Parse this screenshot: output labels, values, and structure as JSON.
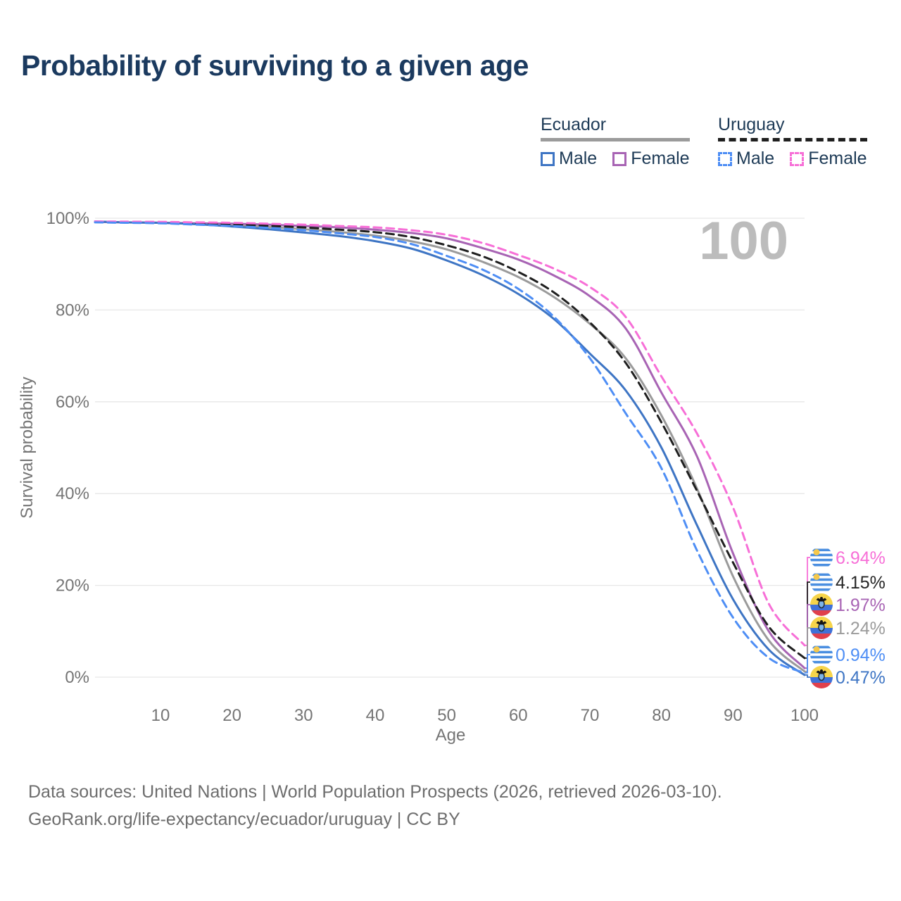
{
  "title": "Probability of surviving to a given age",
  "watermark": "100",
  "legend": {
    "position": "top-right",
    "groups": [
      {
        "name": "Ecuador",
        "underline_style": "solid",
        "underline_color": "#9b9b9b",
        "items": [
          {
            "label": "Male",
            "color": "#3e75c4",
            "dash": false
          },
          {
            "label": "Female",
            "color": "#a864b4",
            "dash": false
          }
        ]
      },
      {
        "name": "Uruguay",
        "underline_style": "dashed",
        "underline_color": "#1f1f1f",
        "items": [
          {
            "label": "Male",
            "color": "#4e8ef5",
            "dash": true
          },
          {
            "label": "Female",
            "color": "#f76fd7",
            "dash": true
          }
        ]
      }
    ]
  },
  "chart_data": {
    "type": "line",
    "title": "Probability of surviving to a given age",
    "xlabel": "Age",
    "ylabel": "Survival probability",
    "xlim": [
      0,
      100
    ],
    "ylim": [
      0,
      100
    ],
    "grid": "horizontal",
    "x_ticks": [
      10,
      20,
      30,
      40,
      50,
      60,
      70,
      80,
      90,
      100
    ],
    "y_tick_labels": [
      "0%",
      "20%",
      "40%",
      "60%",
      "80%",
      "100%"
    ],
    "ages": [
      0,
      5,
      10,
      15,
      20,
      25,
      30,
      35,
      40,
      45,
      50,
      55,
      60,
      65,
      70,
      75,
      80,
      85,
      90,
      95,
      100
    ],
    "series": [
      {
        "name": "Ecuador",
        "country": "Ecuador",
        "group": "Both sexes",
        "color": "#9b9b9b",
        "dash": false,
        "end_label": "1.24%",
        "values": [
          99.25,
          99.1,
          99.0,
          98.8,
          98.5,
          98.1,
          97.6,
          97.0,
          96.2,
          95.0,
          93.2,
          90.5,
          87.2,
          82.8,
          77.0,
          69.5,
          57.0,
          41.0,
          22.0,
          8.0,
          1.24
        ]
      },
      {
        "name": "Ecuador Female",
        "country": "Ecuador",
        "group": "Female",
        "color": "#a864b4",
        "dash": false,
        "end_label": "1.97%",
        "values": [
          99.2,
          99.1,
          99.0,
          98.9,
          98.8,
          98.6,
          98.3,
          98.0,
          97.5,
          96.8,
          95.6,
          93.5,
          91.0,
          87.5,
          83.0,
          76.0,
          62.0,
          48.0,
          27.0,
          10.0,
          1.97
        ]
      },
      {
        "name": "Ecuador Male",
        "country": "Ecuador",
        "group": "Male",
        "color": "#3e75c4",
        "dash": false,
        "end_label": "0.47%",
        "values": [
          99.3,
          99.1,
          99.0,
          98.7,
          98.2,
          97.6,
          96.9,
          96.1,
          95.0,
          93.4,
          90.8,
          87.6,
          83.5,
          78.0,
          70.5,
          62.5,
          50.0,
          33.0,
          17.0,
          6.0,
          0.47
        ]
      },
      {
        "name": "Uruguay",
        "country": "Uruguay",
        "group": "Both sexes",
        "color": "#1f1f1f",
        "label_color": "#262626",
        "dash": true,
        "end_label": "4.15%",
        "values": [
          99.2,
          99.1,
          99.05,
          98.85,
          98.65,
          98.35,
          98.0,
          97.5,
          96.95,
          95.9,
          94.1,
          91.7,
          88.3,
          83.8,
          77.3,
          68.5,
          55.5,
          40.5,
          25.0,
          11.0,
          4.15
        ]
      },
      {
        "name": "Uruguay Female",
        "country": "Uruguay",
        "group": "Female",
        "color": "#f76fd7",
        "dash": true,
        "end_label": "6.94%",
        "values": [
          99.3,
          99.25,
          99.2,
          99.1,
          99.0,
          98.8,
          98.6,
          98.3,
          98.0,
          97.4,
          96.4,
          94.6,
          92.0,
          89.0,
          85.0,
          78.5,
          65.5,
          53.0,
          37.0,
          16.0,
          6.94
        ]
      },
      {
        "name": "Uruguay Male",
        "country": "Uruguay",
        "group": "Male",
        "color": "#4e8ef5",
        "dash": true,
        "end_label": "0.94%",
        "values": [
          99.1,
          99.0,
          98.9,
          98.6,
          98.3,
          97.9,
          97.4,
          96.7,
          95.9,
          94.4,
          91.8,
          88.8,
          84.6,
          78.5,
          69.5,
          57.5,
          45.5,
          27.5,
          13.0,
          4.2,
          0.94
        ]
      }
    ]
  },
  "footer": {
    "line1": "Data sources: United Nations | World Population Prospects (2026, retrieved 2026-03-10).",
    "line2": "GeoRank.org/life-expectancy/ecuador/uruguay | CC BY"
  },
  "colors": {
    "title_text": "#1b3a5f",
    "legend_text": "#1d3a56",
    "axis_text": "#757575",
    "gridline": "#e7e7e7",
    "watermark": "#bcbcbc",
    "footer_text": "#6d6d6d",
    "flag_uruguay_blue": "#4a8ee0",
    "flag_uruguay_sun": "#f5c84b",
    "flag_ecuador_yellow": "#f6d44a",
    "flag_ecuador_blue": "#3f71d8",
    "flag_ecuador_red": "#e0404c"
  }
}
